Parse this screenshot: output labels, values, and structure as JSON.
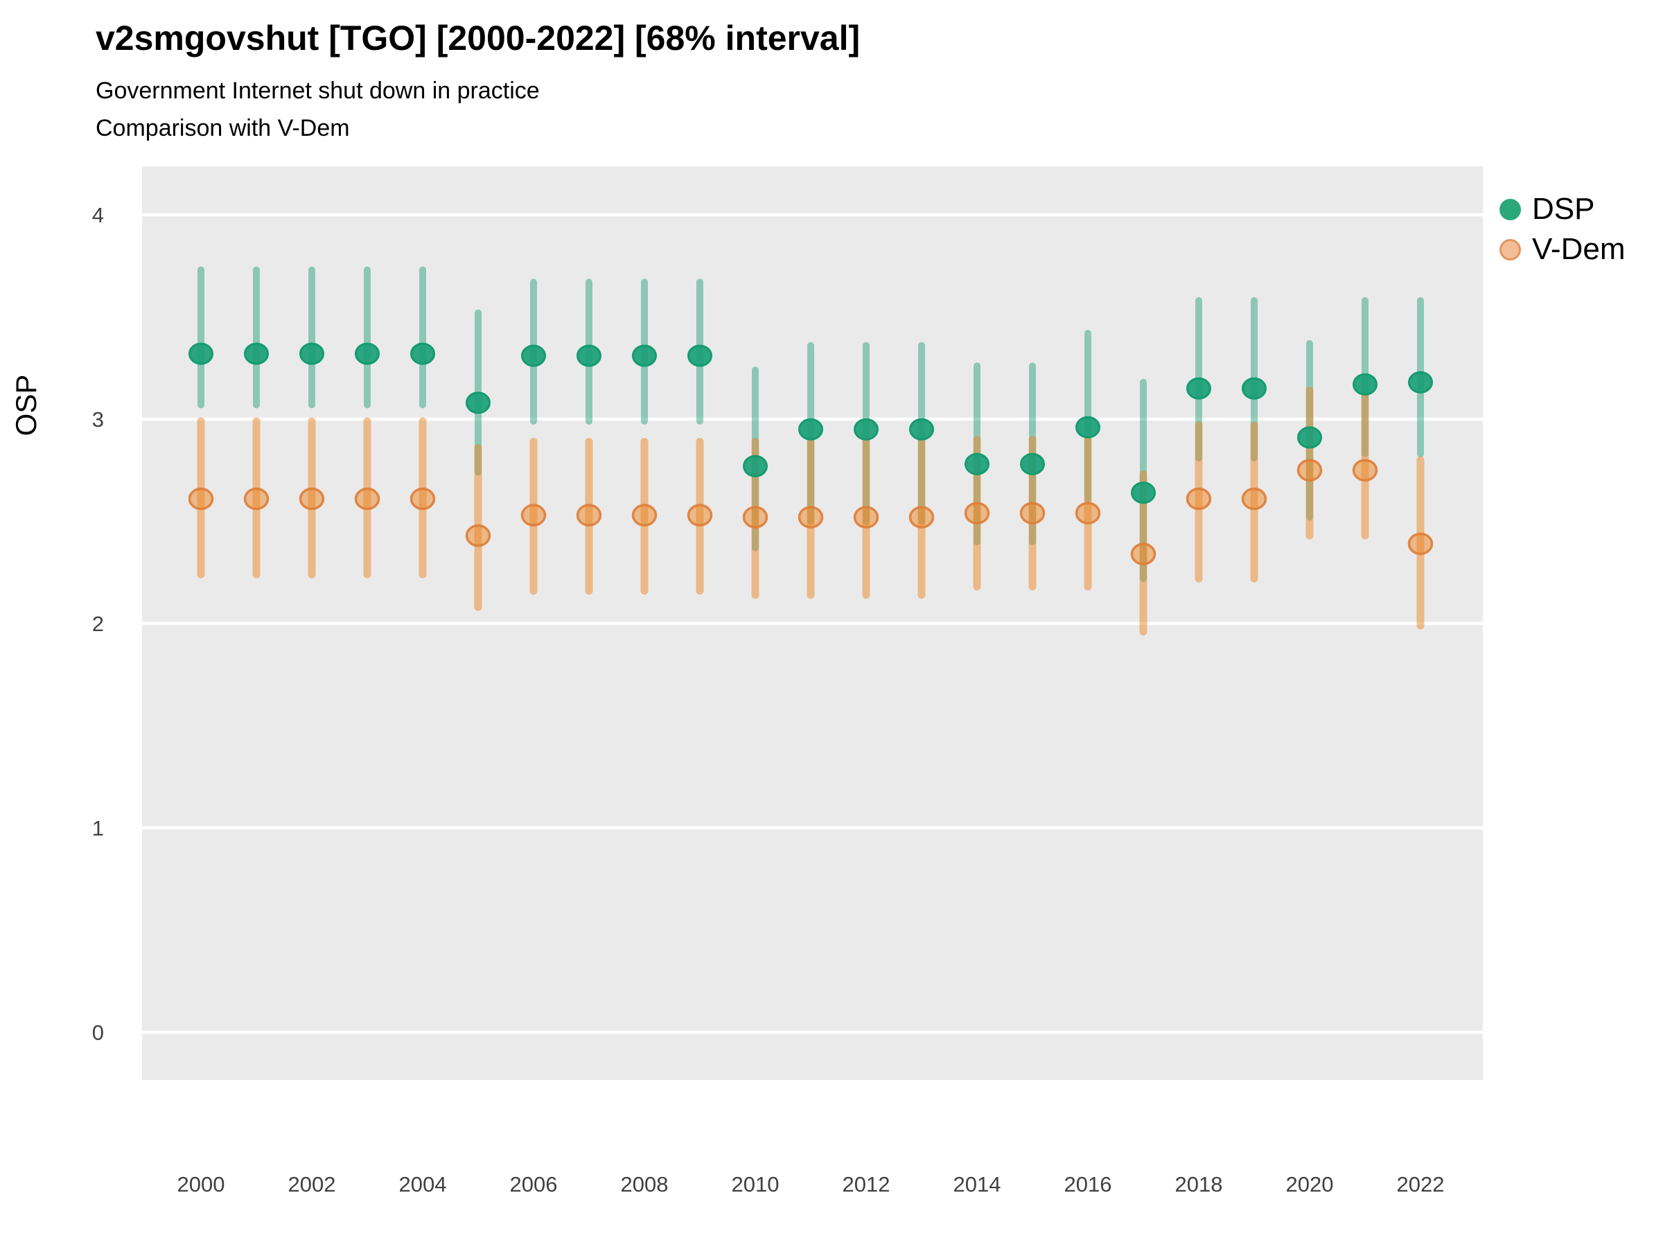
{
  "chart_data": {
    "type": "scatter",
    "title": "v2smgovshut [TGO] [2000-2022] [68% interval]",
    "subtitle": "Government Internet shut down in practice",
    "subtitle2": "Comparison with V-Dem",
    "ylabel": "OSP",
    "xlabel": "",
    "x_ticks": [
      2000,
      2002,
      2004,
      2006,
      2008,
      2010,
      2012,
      2014,
      2016,
      2018,
      2020,
      2022
    ],
    "y_ticks": [
      0,
      1,
      2,
      3,
      4
    ],
    "ylim": [
      -0.24,
      4.24
    ],
    "xlim": [
      1998.9,
      2023.1
    ],
    "grid": "major-y-white-on-gray",
    "legend_position": "right-top",
    "interval_note": "68% interval",
    "colors": {
      "panel_bg": "#EAEAEA",
      "gridline": "#FFFFFF",
      "dsp_bar": "rgba(27,158,119,0.45)",
      "dsp_point_fill": "rgba(27,158,119,0.92)",
      "dsp_point_stroke": "#149C6D",
      "vdem_bar": "rgba(235,133,38,0.5)",
      "vdem_point_fill": "rgba(235,133,38,0.5)",
      "vdem_point_stroke": "rgba(222,125,55,0.9)",
      "tick_text": "#404040"
    },
    "legend": [
      {
        "label": "DSP",
        "fill": "#2AA87A",
        "stroke": "#2AA87A"
      },
      {
        "label": "V-Dem",
        "fill": "#F2BE97",
        "stroke": "#E0975F"
      }
    ],
    "series": [
      {
        "name": "DSP",
        "points": [
          {
            "year": 2000,
            "lo": 3.07,
            "value": 3.32,
            "hi": 3.73
          },
          {
            "year": 2001,
            "lo": 3.07,
            "value": 3.32,
            "hi": 3.73
          },
          {
            "year": 2002,
            "lo": 3.07,
            "value": 3.32,
            "hi": 3.73
          },
          {
            "year": 2003,
            "lo": 3.07,
            "value": 3.32,
            "hi": 3.73
          },
          {
            "year": 2004,
            "lo": 3.07,
            "value": 3.32,
            "hi": 3.73
          },
          {
            "year": 2005,
            "lo": 2.74,
            "value": 3.08,
            "hi": 3.52
          },
          {
            "year": 2006,
            "lo": 2.99,
            "value": 3.31,
            "hi": 3.67
          },
          {
            "year": 2007,
            "lo": 2.99,
            "value": 3.31,
            "hi": 3.67
          },
          {
            "year": 2008,
            "lo": 2.99,
            "value": 3.31,
            "hi": 3.67
          },
          {
            "year": 2009,
            "lo": 2.99,
            "value": 3.31,
            "hi": 3.67
          },
          {
            "year": 2010,
            "lo": 2.37,
            "value": 2.77,
            "hi": 3.24
          },
          {
            "year": 2011,
            "lo": 2.5,
            "value": 2.95,
            "hi": 3.36
          },
          {
            "year": 2012,
            "lo": 2.5,
            "value": 2.95,
            "hi": 3.36
          },
          {
            "year": 2013,
            "lo": 2.5,
            "value": 2.95,
            "hi": 3.36
          },
          {
            "year": 2014,
            "lo": 2.4,
            "value": 2.78,
            "hi": 3.26
          },
          {
            "year": 2015,
            "lo": 2.4,
            "value": 2.78,
            "hi": 3.26
          },
          {
            "year": 2016,
            "lo": 2.61,
            "value": 2.96,
            "hi": 3.42
          },
          {
            "year": 2017,
            "lo": 2.22,
            "value": 2.64,
            "hi": 3.18
          },
          {
            "year": 2018,
            "lo": 2.81,
            "value": 3.15,
            "hi": 3.58
          },
          {
            "year": 2019,
            "lo": 2.81,
            "value": 3.15,
            "hi": 3.58
          },
          {
            "year": 2020,
            "lo": 2.52,
            "value": 2.91,
            "hi": 3.37
          },
          {
            "year": 2021,
            "lo": 2.83,
            "value": 3.17,
            "hi": 3.58
          },
          {
            "year": 2022,
            "lo": 2.83,
            "value": 3.18,
            "hi": 3.58
          }
        ]
      },
      {
        "name": "V-Dem",
        "points": [
          {
            "year": 2000,
            "lo": 2.24,
            "value": 2.61,
            "hi": 2.99
          },
          {
            "year": 2001,
            "lo": 2.24,
            "value": 2.61,
            "hi": 2.99
          },
          {
            "year": 2002,
            "lo": 2.24,
            "value": 2.61,
            "hi": 2.99
          },
          {
            "year": 2003,
            "lo": 2.24,
            "value": 2.61,
            "hi": 2.99
          },
          {
            "year": 2004,
            "lo": 2.24,
            "value": 2.61,
            "hi": 2.99
          },
          {
            "year": 2005,
            "lo": 2.08,
            "value": 2.43,
            "hi": 2.86
          },
          {
            "year": 2006,
            "lo": 2.16,
            "value": 2.53,
            "hi": 2.89
          },
          {
            "year": 2007,
            "lo": 2.16,
            "value": 2.53,
            "hi": 2.89
          },
          {
            "year": 2008,
            "lo": 2.16,
            "value": 2.53,
            "hi": 2.89
          },
          {
            "year": 2009,
            "lo": 2.16,
            "value": 2.53,
            "hi": 2.89
          },
          {
            "year": 2010,
            "lo": 2.14,
            "value": 2.52,
            "hi": 2.89
          },
          {
            "year": 2011,
            "lo": 2.14,
            "value": 2.52,
            "hi": 2.9
          },
          {
            "year": 2012,
            "lo": 2.14,
            "value": 2.52,
            "hi": 2.9
          },
          {
            "year": 2013,
            "lo": 2.14,
            "value": 2.52,
            "hi": 2.9
          },
          {
            "year": 2014,
            "lo": 2.18,
            "value": 2.54,
            "hi": 2.9
          },
          {
            "year": 2015,
            "lo": 2.18,
            "value": 2.54,
            "hi": 2.9
          },
          {
            "year": 2016,
            "lo": 2.18,
            "value": 2.54,
            "hi": 2.9
          },
          {
            "year": 2017,
            "lo": 1.96,
            "value": 2.34,
            "hi": 2.73
          },
          {
            "year": 2018,
            "lo": 2.22,
            "value": 2.61,
            "hi": 2.97
          },
          {
            "year": 2019,
            "lo": 2.22,
            "value": 2.61,
            "hi": 2.97
          },
          {
            "year": 2020,
            "lo": 2.43,
            "value": 2.75,
            "hi": 3.14
          },
          {
            "year": 2021,
            "lo": 2.43,
            "value": 2.75,
            "hi": 3.12
          },
          {
            "year": 2022,
            "lo": 1.99,
            "value": 2.39,
            "hi": 2.8
          }
        ]
      }
    ]
  }
}
